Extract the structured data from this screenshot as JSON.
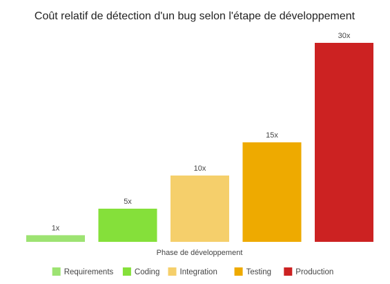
{
  "chart_data": {
    "type": "bar",
    "title": "Coût relatif de détection d'un bug selon l'étape de développement",
    "xlabel": "Phase de développement",
    "ylabel": "",
    "categories": [
      "Requirements",
      "Coding",
      "Integration",
      "Testing",
      "Production"
    ],
    "values": [
      1,
      5,
      10,
      15,
      30
    ],
    "value_labels": [
      "1x",
      "5x",
      "10x",
      "15x",
      "30x"
    ],
    "colors": [
      "#9de372",
      "#85e03a",
      "#f5cf6b",
      "#eeaa00",
      "#cc2222"
    ],
    "ylim": [
      0,
      30
    ],
    "grid": false,
    "legend_position": "bottom"
  }
}
